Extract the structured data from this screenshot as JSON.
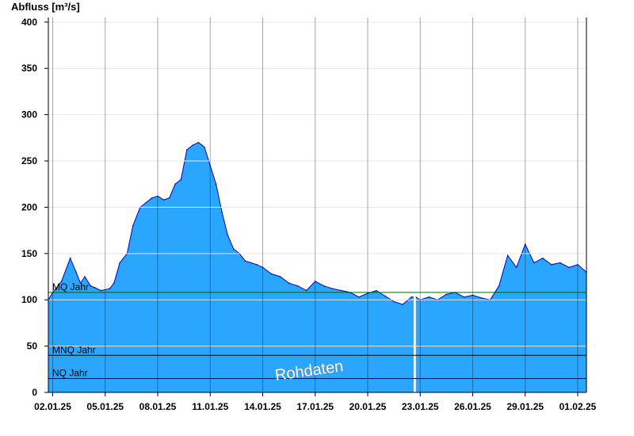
{
  "chart_data": {
    "type": "area",
    "ylabel": "Abfluss [m³/s]",
    "ylim": [
      0,
      405
    ],
    "yticks": [
      0,
      50,
      100,
      150,
      200,
      250,
      300,
      350,
      400
    ],
    "x_start": "01.01.25 18:00",
    "x_end": "01.02.25 12:00",
    "xticks": [
      "02.01.25",
      "05.01.25",
      "08.01.25",
      "11.01.25",
      "14.01.25",
      "17.01.25",
      "20.01.25",
      "23.01.25",
      "26.01.25",
      "29.01.25",
      "01.02.25"
    ],
    "grid": true,
    "colors": {
      "fill": "#2aa6ff",
      "line": "#0000bb",
      "mq": "#006600",
      "ref": "#000000",
      "gap": "#ffffff"
    },
    "reference_lines": [
      {
        "name": "MQ Jahr",
        "value": 108
      },
      {
        "name": "MNQ Jahr",
        "value": 40
      },
      {
        "name": "NQ Jahr",
        "value": 15
      }
    ],
    "watermark": "Rohdaten",
    "gap": [
      "22.01.25 15:00",
      "22.01.25 18:00"
    ],
    "series": [
      {
        "x": [
          "01.01.25 18:00",
          "02.01.25 00:00",
          "02.01.25 12:00",
          "03.01.25 00:00",
          "03.01.25 08:00",
          "03.01.25 14:00",
          "03.01.25 20:00",
          "04.01.25 04:00",
          "04.01.25 10:00",
          "04.01.25 18:00",
          "05.01.25 06:00",
          "05.01.25 12:00",
          "05.01.25 20:00",
          "06.01.25 06:00",
          "06.01.25 14:00",
          "07.01.25 00:00",
          "07.01.25 08:00",
          "07.01.25 16:00",
          "08.01.25 00:00",
          "08.01.25 08:00",
          "08.01.25 16:00",
          "09.01.25 00:00",
          "09.01.25 08:00",
          "09.01.25 16:00",
          "10.01.25 00:00",
          "10.01.25 08:00",
          "10.01.25 16:00",
          "11.01.25 00:00",
          "11.01.25 08:00",
          "11.01.25 16:00",
          "12.01.25 00:00",
          "12.01.25 08:00",
          "12.01.25 16:00",
          "13.01.25 00:00",
          "13.01.25 08:00",
          "13.01.25 16:00",
          "14.01.25 00:00",
          "14.01.25 12:00",
          "15.01.25 00:00",
          "15.01.25 12:00",
          "16.01.25 00:00",
          "16.01.25 12:00",
          "17.01.25 00:00",
          "17.01.25 12:00",
          "18.01.25 00:00",
          "18.01.25 12:00",
          "19.01.25 00:00",
          "19.01.25 12:00",
          "20.01.25 00:00",
          "20.01.25 12:00",
          "21.01.25 00:00",
          "21.01.25 12:00",
          "22.01.25 00:00",
          "22.01.25 12:00",
          "22.01.25 18:00",
          "23.01.25 00:00",
          "23.01.25 12:00",
          "24.01.25 00:00",
          "24.01.25 12:00",
          "25.01.25 00:00",
          "25.01.25 12:00",
          "26.01.25 00:00",
          "26.01.25 12:00",
          "27.01.25 00:00",
          "27.01.25 12:00",
          "28.01.25 00:00",
          "28.01.25 12:00",
          "29.01.25 00:00",
          "29.01.25 12:00",
          "30.01.25 00:00",
          "30.01.25 12:00",
          "31.01.25 00:00",
          "31.01.25 12:00",
          "01.02.25 00:00",
          "01.02.25 12:00"
        ],
        "y": [
          100,
          108,
          120,
          145,
          130,
          118,
          125,
          115,
          113,
          110,
          112,
          118,
          140,
          150,
          180,
          200,
          205,
          210,
          212,
          208,
          210,
          225,
          230,
          262,
          267,
          270,
          265,
          245,
          225,
          195,
          170,
          155,
          150,
          142,
          140,
          138,
          135,
          128,
          125,
          118,
          115,
          110,
          120,
          115,
          112,
          110,
          108,
          103,
          107,
          110,
          104,
          98,
          95,
          103,
          103,
          100,
          103,
          100,
          106,
          108,
          103,
          105,
          102,
          100,
          115,
          148,
          135,
          160,
          140,
          145,
          138,
          140,
          135,
          138,
          130
        ]
      }
    ]
  }
}
